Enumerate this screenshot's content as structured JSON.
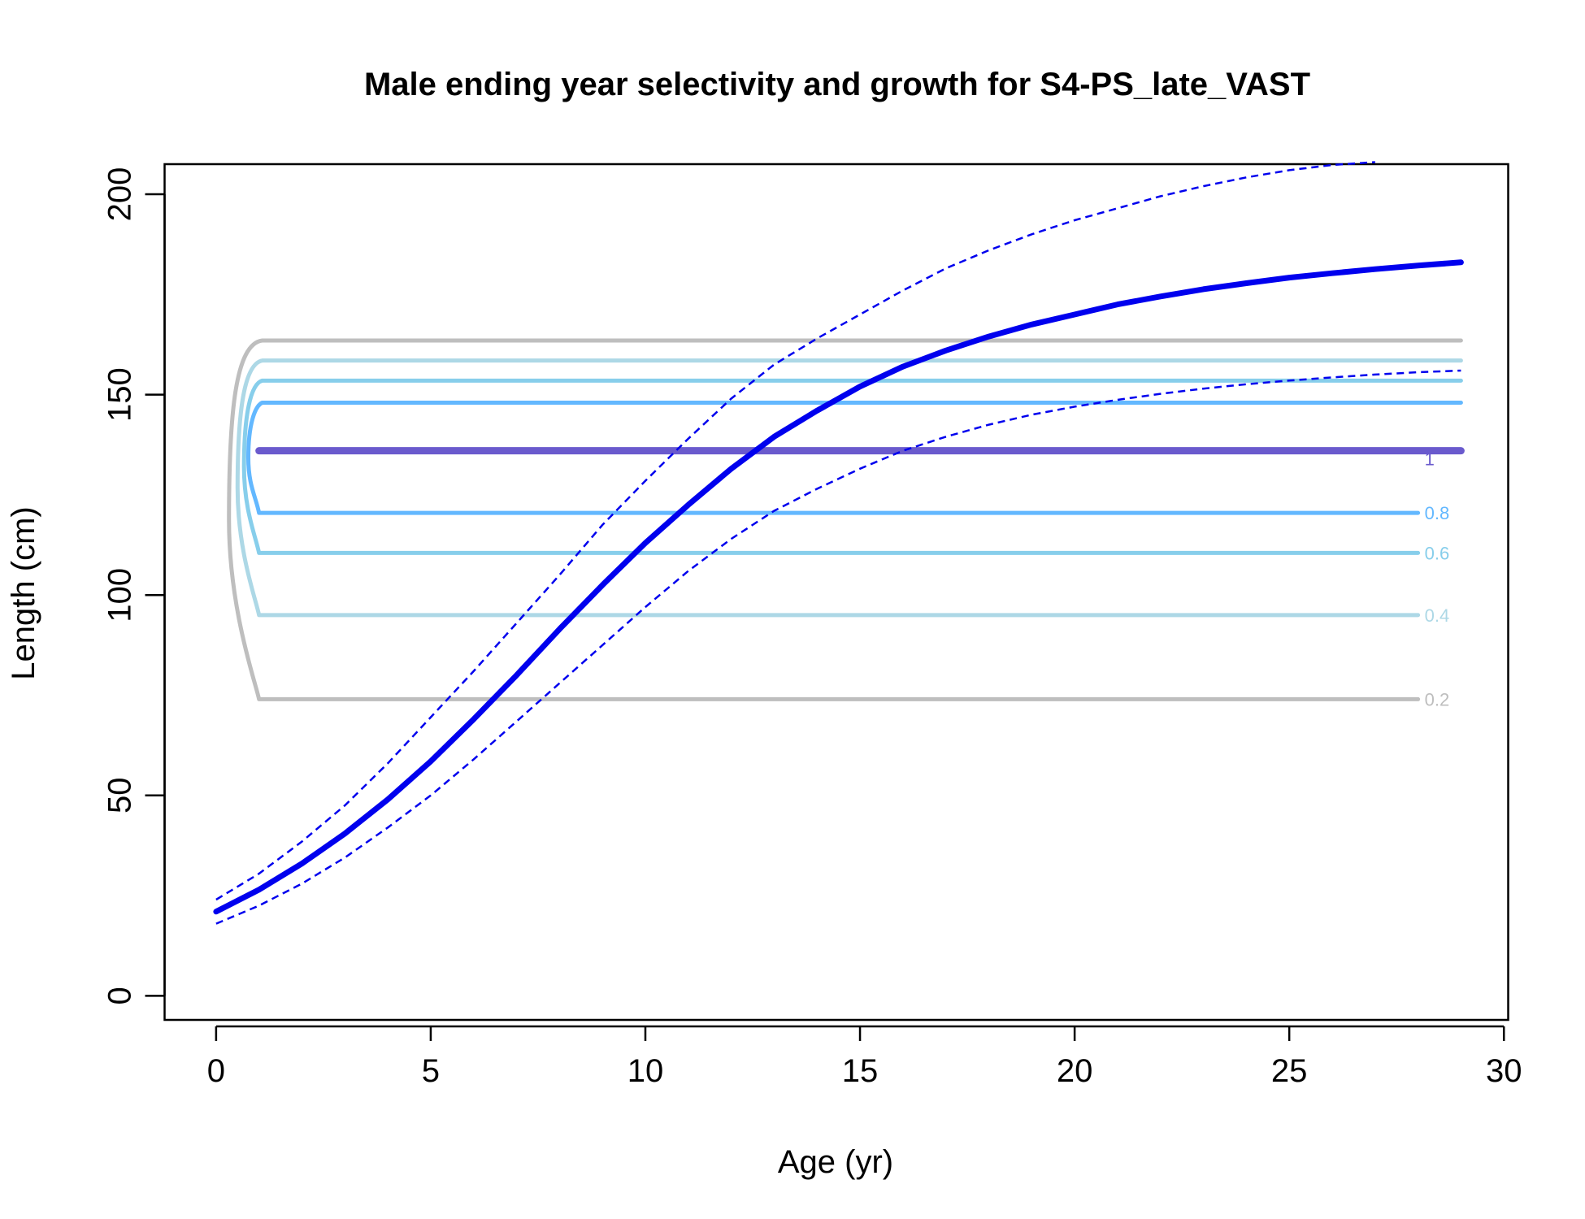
{
  "chart_data": {
    "type": "line",
    "title": "Male ending year selectivity and growth for S4-PS_late_VAST",
    "xlabel": "Age (yr)",
    "ylabel": "Length (cm)",
    "xlim": [
      -1.2,
      30.1
    ],
    "ylim": [
      -6,
      207.5
    ],
    "xticks": [
      "0",
      "5",
      "10",
      "15",
      "20",
      "25",
      "30"
    ],
    "yticks": [
      "0",
      "50",
      "100",
      "150",
      "200"
    ],
    "grid": false,
    "growth_curve": {
      "color": "#0000ee",
      "x": [
        0,
        1,
        2,
        3,
        4,
        5,
        6,
        7,
        8,
        9,
        10,
        11,
        12,
        13,
        14,
        15,
        16,
        17,
        18,
        19,
        20,
        21,
        22,
        23,
        24,
        25,
        26,
        27,
        28,
        29
      ],
      "y": [
        21,
        26.5,
        33,
        40.5,
        49,
        58.5,
        69,
        80,
        91.5,
        102.5,
        113,
        122.5,
        131.5,
        139.5,
        146,
        152,
        157,
        161,
        164.5,
        167.5,
        170,
        172.5,
        174.5,
        176.3,
        177.8,
        179.2,
        180.3,
        181.3,
        182.2,
        183
      ]
    },
    "growth_upper": {
      "color": "#0000ee",
      "x": [
        0,
        1,
        2,
        3,
        4,
        5,
        6,
        7,
        8,
        9,
        10,
        11,
        12,
        13,
        14,
        15,
        16,
        17,
        18,
        19,
        20,
        21,
        22,
        23,
        24,
        25,
        26,
        27
      ],
      "y": [
        24,
        30.5,
        38.5,
        47.5,
        58,
        69.5,
        81,
        93,
        105,
        117.5,
        128.5,
        139,
        149,
        157.5,
        164,
        170,
        176,
        181.5,
        186,
        190,
        193.5,
        196.5,
        199.5,
        202,
        204.2,
        206,
        207.3,
        208
      ]
    },
    "growth_lower": {
      "color": "#0000ee",
      "x": [
        0,
        1,
        2,
        3,
        4,
        5,
        6,
        7,
        8,
        9,
        10,
        11,
        12,
        13,
        14,
        15,
        16,
        17,
        18,
        19,
        20,
        21,
        22,
        23,
        24,
        25,
        26,
        27,
        28,
        29
      ],
      "y": [
        18,
        22.5,
        28,
        34.5,
        42,
        50,
        59,
        68.5,
        78,
        87.5,
        97,
        106,
        114,
        121,
        126.5,
        131.5,
        136,
        139.5,
        142.5,
        145,
        147,
        148.7,
        150.2,
        151.5,
        152.6,
        153.5,
        154.3,
        155,
        155.6,
        156
      ]
    },
    "selectivity_contours": [
      {
        "level": "0.2",
        "color": "#bebebe",
        "low": 74,
        "high": 163.5,
        "x_left": 0.3,
        "label": "0.2"
      },
      {
        "level": "0.4",
        "color": "#add8e6",
        "low": 95,
        "high": 158.5,
        "x_left": 0.5,
        "label": "0.4"
      },
      {
        "level": "0.6",
        "color": "#87ceeb",
        "low": 110.5,
        "high": 153.5,
        "x_left": 0.65,
        "label": "0.6"
      },
      {
        "level": "0.8",
        "color": "#63b8ff",
        "low": 120.5,
        "high": 148,
        "x_left": 0.75,
        "label": "0.8"
      },
      {
        "level": "1",
        "color": "#6a5acd",
        "low": 136,
        "high": 136,
        "x_left": 1.0,
        "label": "1"
      }
    ],
    "contour_x_start": 1.0,
    "contour_x_end": 29,
    "contour_label_end": 28
  }
}
